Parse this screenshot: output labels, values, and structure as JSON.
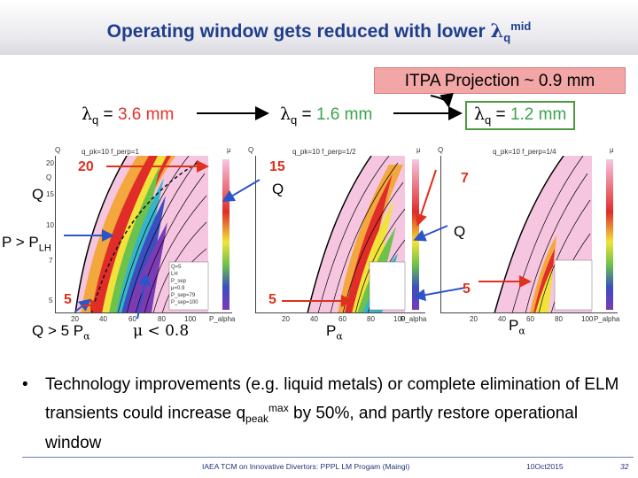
{
  "slide": {
    "title_prefix": "Operating window gets reduced with lower ",
    "title_lambda": "λ",
    "title_sub": "q",
    "title_sup": "mid"
  },
  "itpa": {
    "label": "ITPA Projection ~ 0.9 mm"
  },
  "lambda_labels": [
    {
      "sym": "λ",
      "sub": "q",
      "eq": " = ",
      "value": "3.6 mm"
    },
    {
      "sym": "λ",
      "sub": "q",
      "eq": " = ",
      "value": "1.6 mm"
    },
    {
      "sym": "λ",
      "sub": "q",
      "eq": " = ",
      "value": "1.2 mm"
    }
  ],
  "panels": [
    {
      "title": "q_pk=10 f_perp=1",
      "left_axis": "Q",
      "right_axis": "μ",
      "x_ticks": [
        "20",
        "40",
        "60",
        "80",
        "100"
      ],
      "y_ticks": [
        "20",
        "15",
        "10",
        "7",
        "5"
      ],
      "xlabel": "P_alpha",
      "ylabel": "Q"
    },
    {
      "title": "q_pk=10 f_perp=1/2",
      "left_axis": "Q",
      "right_axis": "μ",
      "x_ticks": [
        "20",
        "40",
        "60",
        "80",
        "100"
      ],
      "y_ticks": [
        "20",
        "15",
        "10",
        "7",
        "5"
      ],
      "xlabel": "P_alpha",
      "ylabel": "Q"
    },
    {
      "title": "q_pk=10 f_perp=1/4",
      "left_axis": "Q",
      "right_axis": "μ",
      "x_ticks": [
        "20",
        "40",
        "60",
        "80",
        "100"
      ],
      "y_ticks": [
        "20",
        "15",
        "10",
        "7",
        "5"
      ],
      "xlabel": "P_alpha",
      "ylabel": "Q"
    }
  ],
  "legend": {
    "items": [
      "Q=5",
      "LH",
      "P_sep",
      "μ=0.9",
      "P_sep=79",
      "P_sep=100"
    ]
  },
  "annotations": {
    "p1_top": "20",
    "p1_q": "Q",
    "p1_bottom": "5",
    "p2_top": "15",
    "p2_q": "Q",
    "p2_bottom": "5",
    "p3_top": "7",
    "p3_q": "Q",
    "p3_bottom": "5",
    "p_gt_plh": "P > P",
    "p_gt_plh_sub": "LH",
    "q_gt_5": "Q > 5  P",
    "alpha": "α",
    "mu_lt": "μ < 0.8",
    "p_alpha_2": "P",
    "p_alpha_3": "P"
  },
  "bullet": {
    "line_a": "Technology improvements (e.g. liquid metals) or complete elimination of ELM transients could increase q",
    "sub": "peak",
    "sup": "max",
    "line_b": " by 50%, and partly restore operational window"
  },
  "footer": {
    "left": "IAEA TCM on Innovative Divertors: PPPL LM Progam (Maingi)",
    "date": "10Oct2015",
    "page": "32"
  },
  "colors": {
    "title": "#1f3d8c",
    "accent_red": "#e4322b",
    "accent_green": "#3aa648",
    "itpa_fill": "#f2a6a6",
    "arrow_blue": "#2b55c9"
  }
}
